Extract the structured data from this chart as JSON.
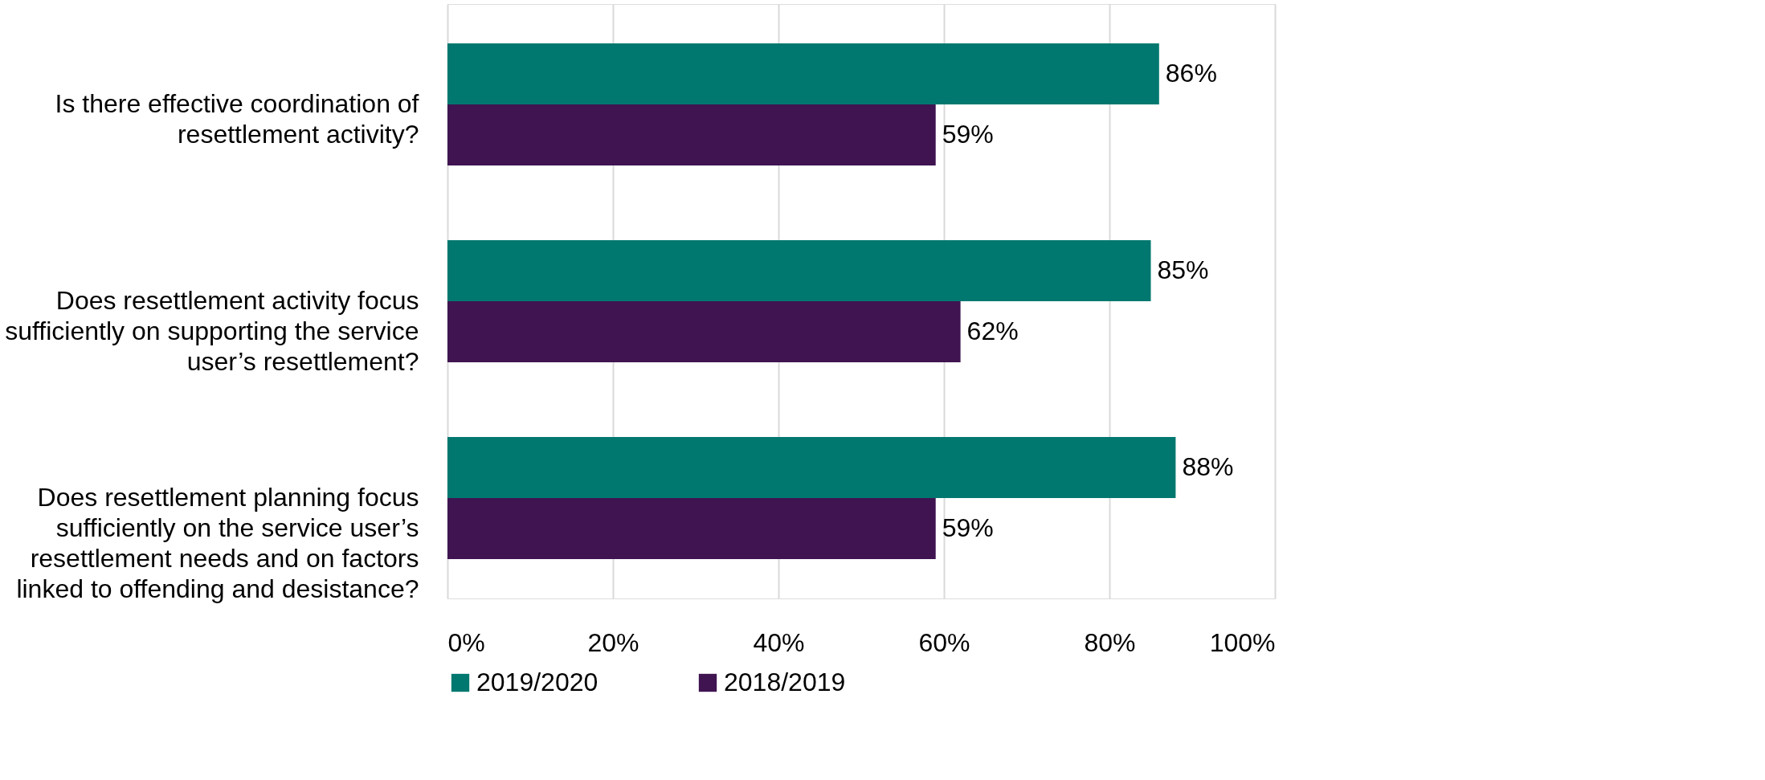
{
  "chart_data": {
    "type": "bar",
    "orientation": "horizontal",
    "categories": [
      "Is there effective coordination of resettlement activity?",
      "Does resettlement activity focus sufficiently on supporting the service user’s resettlement?",
      "Does resettlement planning focus sufficiently on the service user’s resettlement needs and on factors linked to offending and desistance?"
    ],
    "series": [
      {
        "name": "2019/2020",
        "color": "#00786f",
        "values": [
          86,
          85,
          88
        ],
        "value_labels": [
          "86%",
          "85%",
          "88%"
        ]
      },
      {
        "name": "2018/2019",
        "color": "#3f1451",
        "values": [
          59,
          62,
          59
        ],
        "value_labels": [
          "59%",
          "62%",
          "59%"
        ]
      }
    ],
    "xlim": [
      0,
      100
    ],
    "xticks": [
      {
        "value": 0,
        "label": "0%"
      },
      {
        "value": 20,
        "label": "20%"
      },
      {
        "value": 40,
        "label": "40%"
      },
      {
        "value": 60,
        "label": "60%"
      },
      {
        "value": 80,
        "label": "80%"
      },
      {
        "value": 100,
        "label": "100%"
      }
    ],
    "grid": "x",
    "legend": "bottom"
  }
}
